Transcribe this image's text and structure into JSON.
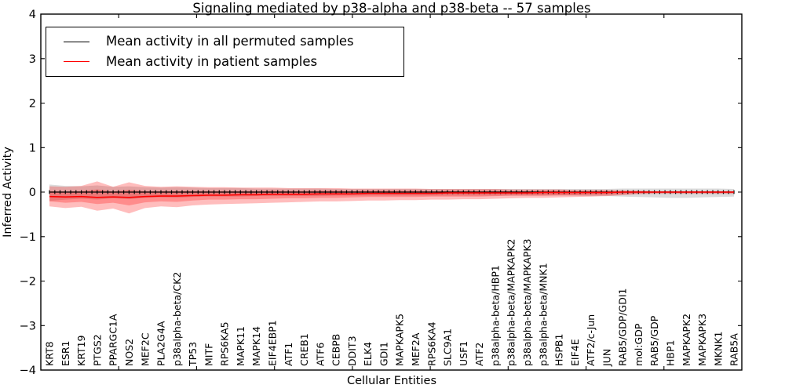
{
  "figure": {
    "title": "Signaling mediated by p38-alpha and p38-beta -- 57 samples",
    "xlabel": "Cellular Entities",
    "ylabel": "Inferred Activity"
  },
  "legend": {
    "items": [
      {
        "label": "Mean activity in all permuted samples",
        "color": "#000000"
      },
      {
        "label": "Mean activity in patient samples",
        "color": "#ff0000"
      }
    ]
  },
  "chart_data": {
    "type": "line",
    "title": "Signaling mediated by p38-alpha and p38-beta -- 57 samples",
    "xlabel": "Cellular Entities",
    "ylabel": "Inferred Activity",
    "ylim": [
      -4,
      4
    ],
    "yticks": [
      -4,
      -3,
      -2,
      -1,
      0,
      1,
      2,
      3,
      4
    ],
    "xlim": [
      0,
      45
    ],
    "xticks": [
      5,
      10,
      15,
      20,
      25,
      30,
      35,
      40
    ],
    "grid": false,
    "legend_position": "upper left",
    "categories": [
      "KRT8",
      "ESR1",
      "KRT19",
      "PTGS2",
      "PPARGC1A",
      "NOS2",
      "MEF2C",
      "PLA2G4A",
      "p38alpha-beta/CK2",
      "TP53",
      "MITF",
      "RPS6KA5",
      "MAPK11",
      "MAPK14",
      "EIF4EBP1",
      "ATF1",
      "CREB1",
      "ATF6",
      "CEBPB",
      "DDIT3",
      "ELK4",
      "GDI1",
      "MAPKAPK5",
      "MEF2A",
      "RPS6KA4",
      "SLC9A1",
      "USF1",
      "ATF2",
      "p38alpha-beta/HBP1",
      "p38alpha-beta/MAPKAPK2",
      "p38alpha-beta/MAPKAPK3",
      "p38alpha-beta/MNK1",
      "HSPB1",
      "EIF4E",
      "ATF2/c-Jun",
      "JUN",
      "RAB5/GDP/GDI1",
      "mol:GDP",
      "RAB5/GDP",
      "HBP1",
      "MAPKAPK2",
      "MAPKAPK3",
      "MKNK1",
      "RAB5A"
    ],
    "series": [
      {
        "name": "Mean activity in all permuted samples",
        "color": "#000000",
        "marker": "|",
        "values": [
          0,
          0,
          0,
          0,
          0,
          0,
          0,
          0,
          0,
          0,
          0,
          0,
          0,
          0,
          0,
          0,
          0,
          0,
          0,
          0,
          0,
          0,
          0,
          0,
          0,
          0,
          0,
          0,
          0,
          0,
          0,
          0,
          0,
          0,
          0,
          0,
          0,
          0,
          0,
          0,
          0,
          0,
          0,
          0
        ]
      },
      {
        "name": "Mean activity in patient samples",
        "color": "#ff0000",
        "marker": "none",
        "values": [
          -0.1,
          -0.11,
          -0.1,
          -0.12,
          -0.11,
          -0.12,
          -0.1,
          -0.09,
          -0.09,
          -0.08,
          -0.07,
          -0.07,
          -0.06,
          -0.06,
          -0.05,
          -0.05,
          -0.05,
          -0.04,
          -0.04,
          -0.04,
          -0.03,
          -0.03,
          -0.03,
          -0.03,
          -0.03,
          -0.02,
          -0.02,
          -0.02,
          -0.02,
          -0.02,
          -0.02,
          -0.01,
          -0.01,
          -0.01,
          -0.01,
          -0.01,
          0,
          0,
          0,
          0,
          0,
          0,
          0,
          0
        ]
      }
    ],
    "bands": [
      {
        "name": "permuted-samples-std-band",
        "color": "rgba(0,0,0,0.14)",
        "upper": [
          0.17,
          0.14,
          0.13,
          0.15,
          0.12,
          0.13,
          0.11,
          0.1,
          0.11,
          0.1,
          0.09,
          0.09,
          0.09,
          0.08,
          0.08,
          0.08,
          0.08,
          0.08,
          0.07,
          0.07,
          0.07,
          0.07,
          0.07,
          0.07,
          0.07,
          0.07,
          0.07,
          0.07,
          0.07,
          0.07,
          0.07,
          0.07,
          0.07,
          0.07,
          0.07,
          0.07,
          0.08,
          0.08,
          0.08,
          0.08,
          0.08,
          0.08,
          0.08,
          0.07
        ],
        "lower": [
          -0.2,
          -0.17,
          -0.15,
          -0.17,
          -0.14,
          -0.16,
          -0.13,
          -0.12,
          -0.13,
          -0.11,
          -0.1,
          -0.1,
          -0.1,
          -0.09,
          -0.09,
          -0.09,
          -0.09,
          -0.09,
          -0.08,
          -0.08,
          -0.08,
          -0.08,
          -0.08,
          -0.08,
          -0.08,
          -0.08,
          -0.08,
          -0.08,
          -0.08,
          -0.08,
          -0.08,
          -0.08,
          -0.08,
          -0.08,
          -0.09,
          -0.09,
          -0.1,
          -0.11,
          -0.12,
          -0.13,
          -0.13,
          -0.12,
          -0.11,
          -0.1
        ]
      },
      {
        "name": "patient-samples-outer-band",
        "color": "rgba(255,0,0,0.26)",
        "upper": [
          0.13,
          0.12,
          0.14,
          0.24,
          0.12,
          0.22,
          0.14,
          0.12,
          0.13,
          0.12,
          0.11,
          0.11,
          0.1,
          0.1,
          0.1,
          0.09,
          0.09,
          0.09,
          0.09,
          0.08,
          0.08,
          0.08,
          0.08,
          0.08,
          0.07,
          0.07,
          0.07,
          0.07,
          0.07,
          0.06,
          0.06,
          0.06,
          0.06,
          0.05,
          0.05,
          0.05,
          0.04,
          0.03,
          0.02,
          0.02,
          0.02,
          0.02,
          0.02,
          0.02
        ],
        "lower": [
          -0.32,
          -0.36,
          -0.33,
          -0.42,
          -0.37,
          -0.48,
          -0.36,
          -0.32,
          -0.34,
          -0.3,
          -0.28,
          -0.27,
          -0.26,
          -0.25,
          -0.24,
          -0.23,
          -0.22,
          -0.21,
          -0.21,
          -0.2,
          -0.19,
          -0.19,
          -0.18,
          -0.18,
          -0.17,
          -0.17,
          -0.16,
          -0.16,
          -0.15,
          -0.14,
          -0.13,
          -0.13,
          -0.12,
          -0.11,
          -0.1,
          -0.09,
          -0.07,
          -0.05,
          -0.04,
          -0.04,
          -0.04,
          -0.04,
          -0.04,
          -0.04
        ]
      },
      {
        "name": "patient-samples-inner-band",
        "color": "rgba(255,0,0,0.26)",
        "upper": [
          0.02,
          0.01,
          0.02,
          0.06,
          0.01,
          0.05,
          0.02,
          0.02,
          0.02,
          0.02,
          0.02,
          0.02,
          0.02,
          0.02,
          0.03,
          0.02,
          0.02,
          0.03,
          0.03,
          0.02,
          0.03,
          0.03,
          0.03,
          0.03,
          0.02,
          0.03,
          0.03,
          0.03,
          0.03,
          0.02,
          0.02,
          0.03,
          0.03,
          0.02,
          0.02,
          0.02,
          0.02,
          0.02,
          0.01,
          0.01,
          0.01,
          0.01,
          0.01,
          0.01
        ],
        "lower": [
          -0.21,
          -0.24,
          -0.22,
          -0.27,
          -0.24,
          -0.3,
          -0.23,
          -0.21,
          -0.22,
          -0.19,
          -0.17,
          -0.17,
          -0.16,
          -0.16,
          -0.15,
          -0.14,
          -0.14,
          -0.13,
          -0.13,
          -0.12,
          -0.11,
          -0.11,
          -0.11,
          -0.11,
          -0.1,
          -0.1,
          -0.1,
          -0.1,
          -0.09,
          -0.08,
          -0.08,
          -0.08,
          -0.07,
          -0.07,
          -0.06,
          -0.06,
          -0.05,
          -0.03,
          -0.02,
          -0.02,
          -0.02,
          -0.02,
          -0.02,
          -0.02
        ]
      }
    ]
  }
}
